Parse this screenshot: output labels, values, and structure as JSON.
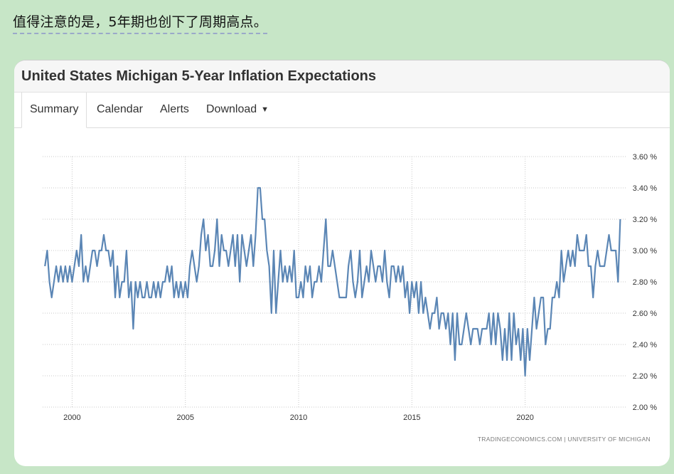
{
  "caption": "值得注意的是，5年期也创下了周期高点。",
  "card": {
    "title": "United States Michigan 5-Year Inflation Expectations",
    "tabs": [
      "Summary",
      "Calendar",
      "Alerts",
      "Download"
    ],
    "source": "TRADINGECONOMICS.COM  |  UNIVERSITY OF MICHIGAN"
  },
  "colors": {
    "line": "#5b86b5",
    "background": "#c7e6c7",
    "grid": "#c8c8c8"
  },
  "chart_data": {
    "type": "line",
    "title": "United States Michigan 5-Year Inflation Expectations",
    "xlim": [
      1998.7,
      2024.5
    ],
    "ylim": [
      2.0,
      3.6
    ],
    "xticks": [
      2000,
      2005,
      2010,
      2015,
      2020
    ],
    "yticks": [
      3.6,
      3.4,
      3.2,
      3.0,
      2.8,
      2.6,
      2.4,
      2.2,
      2.0
    ],
    "ytick_labels": [
      "3.60 %",
      "3.40 %",
      "3.20 %",
      "3.00 %",
      "2.80 %",
      "2.60 %",
      "2.40 %",
      "2.20 %",
      "2.00 %"
    ],
    "grid": true,
    "series": [
      {
        "points": [
          [
            1998.8,
            2.9
          ],
          [
            1998.9,
            3.0
          ],
          [
            1999.0,
            2.8
          ],
          [
            1999.1,
            2.7
          ],
          [
            1999.2,
            2.8
          ],
          [
            1999.3,
            2.9
          ],
          [
            1999.4,
            2.8
          ],
          [
            1999.5,
            2.9
          ],
          [
            1999.6,
            2.8
          ],
          [
            1999.7,
            2.9
          ],
          [
            1999.8,
            2.8
          ],
          [
            1999.9,
            2.9
          ],
          [
            2000.0,
            2.8
          ],
          [
            2000.1,
            2.9
          ],
          [
            2000.2,
            3.0
          ],
          [
            2000.3,
            2.9
          ],
          [
            2000.4,
            3.1
          ],
          [
            2000.5,
            2.8
          ],
          [
            2000.6,
            2.9
          ],
          [
            2000.7,
            2.8
          ],
          [
            2000.8,
            2.9
          ],
          [
            2000.9,
            3.0
          ],
          [
            2001.0,
            3.0
          ],
          [
            2001.1,
            2.9
          ],
          [
            2001.2,
            3.0
          ],
          [
            2001.3,
            3.0
          ],
          [
            2001.4,
            3.1
          ],
          [
            2001.5,
            3.0
          ],
          [
            2001.6,
            3.0
          ],
          [
            2001.7,
            2.9
          ],
          [
            2001.8,
            3.0
          ],
          [
            2001.9,
            2.7
          ],
          [
            2002.0,
            2.9
          ],
          [
            2002.1,
            2.7
          ],
          [
            2002.2,
            2.8
          ],
          [
            2002.3,
            2.8
          ],
          [
            2002.4,
            3.0
          ],
          [
            2002.5,
            2.7
          ],
          [
            2002.6,
            2.8
          ],
          [
            2002.7,
            2.5
          ],
          [
            2002.8,
            2.8
          ],
          [
            2002.9,
            2.7
          ],
          [
            2003.0,
            2.8
          ],
          [
            2003.1,
            2.7
          ],
          [
            2003.2,
            2.7
          ],
          [
            2003.3,
            2.8
          ],
          [
            2003.4,
            2.7
          ],
          [
            2003.5,
            2.7
          ],
          [
            2003.6,
            2.8
          ],
          [
            2003.7,
            2.7
          ],
          [
            2003.8,
            2.8
          ],
          [
            2003.9,
            2.7
          ],
          [
            2004.0,
            2.8
          ],
          [
            2004.1,
            2.8
          ],
          [
            2004.2,
            2.9
          ],
          [
            2004.3,
            2.8
          ],
          [
            2004.4,
            2.9
          ],
          [
            2004.5,
            2.7
          ],
          [
            2004.6,
            2.8
          ],
          [
            2004.7,
            2.7
          ],
          [
            2004.8,
            2.8
          ],
          [
            2004.9,
            2.7
          ],
          [
            2005.0,
            2.8
          ],
          [
            2005.1,
            2.7
          ],
          [
            2005.2,
            2.9
          ],
          [
            2005.3,
            3.0
          ],
          [
            2005.4,
            2.9
          ],
          [
            2005.5,
            2.8
          ],
          [
            2005.6,
            2.9
          ],
          [
            2005.7,
            3.1
          ],
          [
            2005.8,
            3.2
          ],
          [
            2005.9,
            3.0
          ],
          [
            2006.0,
            3.1
          ],
          [
            2006.1,
            2.9
          ],
          [
            2006.2,
            2.9
          ],
          [
            2006.3,
            3.0
          ],
          [
            2006.4,
            3.2
          ],
          [
            2006.5,
            2.9
          ],
          [
            2006.6,
            3.1
          ],
          [
            2006.7,
            3.0
          ],
          [
            2006.8,
            3.0
          ],
          [
            2006.9,
            2.9
          ],
          [
            2007.0,
            3.0
          ],
          [
            2007.1,
            3.1
          ],
          [
            2007.2,
            2.9
          ],
          [
            2007.3,
            3.1
          ],
          [
            2007.4,
            2.8
          ],
          [
            2007.5,
            3.1
          ],
          [
            2007.6,
            3.0
          ],
          [
            2007.7,
            2.9
          ],
          [
            2007.8,
            3.0
          ],
          [
            2007.9,
            3.1
          ],
          [
            2008.0,
            2.9
          ],
          [
            2008.1,
            3.1
          ],
          [
            2008.2,
            3.4
          ],
          [
            2008.3,
            3.4
          ],
          [
            2008.4,
            3.2
          ],
          [
            2008.5,
            3.2
          ],
          [
            2008.6,
            3.0
          ],
          [
            2008.7,
            2.9
          ],
          [
            2008.8,
            2.6
          ],
          [
            2008.9,
            3.0
          ],
          [
            2009.0,
            2.6
          ],
          [
            2009.1,
            2.8
          ],
          [
            2009.2,
            3.0
          ],
          [
            2009.3,
            2.8
          ],
          [
            2009.4,
            2.9
          ],
          [
            2009.5,
            2.8
          ],
          [
            2009.6,
            2.9
          ],
          [
            2009.7,
            2.8
          ],
          [
            2009.8,
            3.0
          ],
          [
            2009.9,
            2.7
          ],
          [
            2010.0,
            2.7
          ],
          [
            2010.1,
            2.8
          ],
          [
            2010.2,
            2.7
          ],
          [
            2010.3,
            2.9
          ],
          [
            2010.4,
            2.8
          ],
          [
            2010.5,
            2.9
          ],
          [
            2010.6,
            2.7
          ],
          [
            2010.7,
            2.8
          ],
          [
            2010.8,
            2.8
          ],
          [
            2010.9,
            2.9
          ],
          [
            2011.0,
            2.8
          ],
          [
            2011.1,
            3.0
          ],
          [
            2011.2,
            3.2
          ],
          [
            2011.3,
            2.9
          ],
          [
            2011.4,
            2.9
          ],
          [
            2011.5,
            3.0
          ],
          [
            2011.6,
            2.9
          ],
          [
            2011.7,
            2.8
          ],
          [
            2011.8,
            2.7
          ],
          [
            2011.9,
            2.7
          ],
          [
            2012.0,
            2.7
          ],
          [
            2012.1,
            2.7
          ],
          [
            2012.2,
            2.9
          ],
          [
            2012.3,
            3.0
          ],
          [
            2012.4,
            2.8
          ],
          [
            2012.5,
            2.7
          ],
          [
            2012.6,
            2.8
          ],
          [
            2012.7,
            3.0
          ],
          [
            2012.8,
            2.7
          ],
          [
            2012.9,
            2.8
          ],
          [
            2013.0,
            2.9
          ],
          [
            2013.1,
            2.8
          ],
          [
            2013.2,
            3.0
          ],
          [
            2013.3,
            2.9
          ],
          [
            2013.4,
            2.8
          ],
          [
            2013.5,
            2.9
          ],
          [
            2013.6,
            2.9
          ],
          [
            2013.7,
            2.8
          ],
          [
            2013.8,
            3.0
          ],
          [
            2013.9,
            2.8
          ],
          [
            2014.0,
            2.7
          ],
          [
            2014.1,
            2.9
          ],
          [
            2014.2,
            2.9
          ],
          [
            2014.3,
            2.8
          ],
          [
            2014.4,
            2.9
          ],
          [
            2014.5,
            2.8
          ],
          [
            2014.6,
            2.9
          ],
          [
            2014.7,
            2.7
          ],
          [
            2014.8,
            2.8
          ],
          [
            2014.9,
            2.6
          ],
          [
            2015.0,
            2.8
          ],
          [
            2015.1,
            2.7
          ],
          [
            2015.2,
            2.8
          ],
          [
            2015.3,
            2.6
          ],
          [
            2015.4,
            2.8
          ],
          [
            2015.5,
            2.6
          ],
          [
            2015.6,
            2.7
          ],
          [
            2015.7,
            2.6
          ],
          [
            2015.8,
            2.5
          ],
          [
            2015.9,
            2.6
          ],
          [
            2016.0,
            2.6
          ],
          [
            2016.1,
            2.7
          ],
          [
            2016.2,
            2.5
          ],
          [
            2016.3,
            2.6
          ],
          [
            2016.4,
            2.6
          ],
          [
            2016.5,
            2.5
          ],
          [
            2016.6,
            2.6
          ],
          [
            2016.7,
            2.4
          ],
          [
            2016.8,
            2.6
          ],
          [
            2016.9,
            2.3
          ],
          [
            2017.0,
            2.6
          ],
          [
            2017.1,
            2.4
          ],
          [
            2017.2,
            2.4
          ],
          [
            2017.3,
            2.5
          ],
          [
            2017.4,
            2.6
          ],
          [
            2017.5,
            2.5
          ],
          [
            2017.6,
            2.4
          ],
          [
            2017.7,
            2.5
          ],
          [
            2017.8,
            2.5
          ],
          [
            2017.9,
            2.5
          ],
          [
            2018.0,
            2.4
          ],
          [
            2018.1,
            2.5
          ],
          [
            2018.2,
            2.5
          ],
          [
            2018.3,
            2.5
          ],
          [
            2018.4,
            2.6
          ],
          [
            2018.5,
            2.4
          ],
          [
            2018.6,
            2.6
          ],
          [
            2018.7,
            2.4
          ],
          [
            2018.8,
            2.6
          ],
          [
            2018.9,
            2.5
          ],
          [
            2019.0,
            2.3
          ],
          [
            2019.1,
            2.5
          ],
          [
            2019.2,
            2.3
          ],
          [
            2019.3,
            2.6
          ],
          [
            2019.4,
            2.3
          ],
          [
            2019.5,
            2.6
          ],
          [
            2019.6,
            2.4
          ],
          [
            2019.7,
            2.5
          ],
          [
            2019.8,
            2.3
          ],
          [
            2019.9,
            2.5
          ],
          [
            2020.0,
            2.2
          ],
          [
            2020.1,
            2.5
          ],
          [
            2020.2,
            2.3
          ],
          [
            2020.3,
            2.5
          ],
          [
            2020.4,
            2.7
          ],
          [
            2020.5,
            2.5
          ],
          [
            2020.6,
            2.6
          ],
          [
            2020.7,
            2.7
          ],
          [
            2020.8,
            2.7
          ],
          [
            2020.9,
            2.4
          ],
          [
            2021.0,
            2.5
          ],
          [
            2021.1,
            2.5
          ],
          [
            2021.2,
            2.7
          ],
          [
            2021.3,
            2.7
          ],
          [
            2021.4,
            2.8
          ],
          [
            2021.5,
            2.7
          ],
          [
            2021.6,
            3.0
          ],
          [
            2021.7,
            2.8
          ],
          [
            2021.8,
            2.9
          ],
          [
            2021.9,
            3.0
          ],
          [
            2022.0,
            2.9
          ],
          [
            2022.1,
            3.0
          ],
          [
            2022.2,
            2.9
          ],
          [
            2022.3,
            3.1
          ],
          [
            2022.4,
            3.0
          ],
          [
            2022.5,
            3.0
          ],
          [
            2022.6,
            3.0
          ],
          [
            2022.7,
            3.1
          ],
          [
            2022.8,
            2.9
          ],
          [
            2022.9,
            2.9
          ],
          [
            2023.0,
            2.7
          ],
          [
            2023.1,
            2.9
          ],
          [
            2023.2,
            3.0
          ],
          [
            2023.3,
            2.9
          ],
          [
            2023.4,
            2.9
          ],
          [
            2023.5,
            2.9
          ],
          [
            2023.6,
            3.0
          ],
          [
            2023.7,
            3.1
          ],
          [
            2023.8,
            3.0
          ],
          [
            2023.9,
            3.0
          ],
          [
            2024.0,
            3.0
          ],
          [
            2024.1,
            2.8
          ],
          [
            2024.2,
            3.2
          ]
        ]
      }
    ]
  }
}
